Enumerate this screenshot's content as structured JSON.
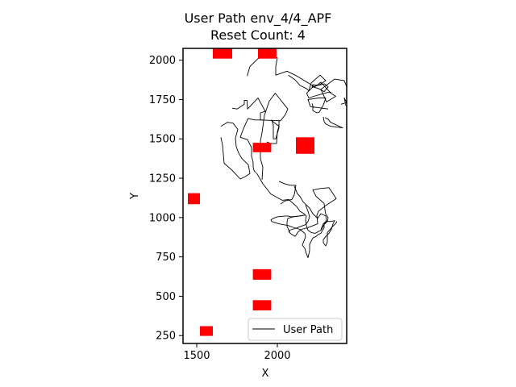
{
  "chart_data": {
    "type": "scatter",
    "title": "User Path env_4/4_APF",
    "subtitle": "Reset Count: 4",
    "xlabel": "X",
    "ylabel": "Y",
    "xlim": [
      1415,
      2430
    ],
    "ylim": [
      200,
      2075
    ],
    "xticks": [
      1500,
      2000
    ],
    "yticks": [
      250,
      500,
      750,
      1000,
      1250,
      1500,
      1750,
      2000
    ],
    "grid": false,
    "legend": {
      "position": "lower-right",
      "entries": [
        "User Path"
      ]
    },
    "colors": {
      "path": "#000000",
      "obstacle": "#ff0000",
      "axes": "#000000"
    },
    "obstacles": [
      {
        "x0": 1600,
        "x1": 1720,
        "y0": 2010,
        "y1": 2075
      },
      {
        "x0": 1880,
        "x1": 1995,
        "y0": 2010,
        "y1": 2075
      },
      {
        "x0": 1848,
        "x1": 1962,
        "y0": 1415,
        "y1": 1475
      },
      {
        "x0": 2115,
        "x1": 2230,
        "y0": 1405,
        "y1": 1510
      },
      {
        "x0": 1445,
        "x1": 1520,
        "y0": 1085,
        "y1": 1155
      },
      {
        "x0": 1848,
        "x1": 1962,
        "y0": 605,
        "y1": 672
      },
      {
        "x0": 1848,
        "x1": 1962,
        "y0": 410,
        "y1": 475
      },
      {
        "x0": 1520,
        "x1": 1600,
        "y0": 248,
        "y1": 310
      }
    ],
    "series": [
      {
        "name": "User Path",
        "segments": [
          [
            [
              1813,
              1900
            ],
            [
              1830,
              1960
            ],
            [
              1880,
              2010
            ],
            [
              1945,
              2030
            ],
            [
              2000,
              2015
            ],
            [
              1990,
              1960
            ],
            [
              1990,
              1905
            ],
            [
              2060,
              1930
            ],
            [
              2120,
              1900
            ],
            [
              2200,
              1850
            ],
            [
              2232,
              1830
            ],
            [
              2270,
              1860
            ],
            [
              2332,
              1790
            ],
            [
              2362,
              1770
            ],
            [
              2305,
              1735
            ],
            [
              2270,
              1815
            ],
            [
              2355,
              1880
            ],
            [
              2415,
              1870
            ],
            [
              2430,
              1830
            ]
          ],
          [
            [
              2068,
              1905
            ],
            [
              2110,
              1875
            ],
            [
              2140,
              1840
            ],
            [
              2180,
              1820
            ],
            [
              2195,
              1805
            ],
            [
              2210,
              1855
            ],
            [
              2265,
              1905
            ],
            [
              2300,
              1870
            ],
            [
              2255,
              1840
            ],
            [
              2220,
              1845
            ],
            [
              2215,
              1830
            ],
            [
              2292,
              1850
            ],
            [
              2315,
              1830
            ],
            [
              2290,
              1800
            ],
            [
              2255,
              1820
            ],
            [
              2220,
              1830
            ],
            [
              2182,
              1790
            ],
            [
              2195,
              1760
            ],
            [
              2225,
              1770
            ],
            [
              2310,
              1795
            ],
            [
              2335,
              1795
            ]
          ],
          [
            [
              2215,
              1725
            ],
            [
              2220,
              1710
            ],
            [
              2220,
              1680
            ],
            [
              2245,
              1665
            ],
            [
              2260,
              1670
            ],
            [
              2285,
              1715
            ],
            [
              2300,
              1760
            ],
            [
              2255,
              1760
            ],
            [
              2190,
              1750
            ],
            [
              2205,
              1705
            ],
            [
              2315,
              1690
            ]
          ],
          [
            [
              2285,
              1640
            ],
            [
              2290,
              1610
            ],
            [
              2300,
              1595
            ],
            [
              2330,
              1580
            ],
            [
              2405,
              1570
            ],
            [
              2330,
              1605
            ],
            [
              2315,
              1625
            ],
            [
              2295,
              1635
            ]
          ],
          [
            [
              2395,
              1720
            ],
            [
              2430,
              1730
            ],
            [
              2415,
              1760
            ],
            [
              2425,
              1710
            ]
          ],
          [
            [
              1720,
              1695
            ],
            [
              1750,
              1690
            ],
            [
              1795,
              1720
            ],
            [
              1795,
              1745
            ],
            [
              1810,
              1745
            ],
            [
              1812,
              1745
            ],
            [
              1815,
              1690
            ],
            [
              1880,
              1760
            ],
            [
              1925,
              1675
            ],
            [
              1895,
              1665
            ],
            [
              1895,
              1660
            ],
            [
              1895,
              1620
            ],
            [
              2020,
              1615
            ],
            [
              2050,
              1655
            ],
            [
              2065,
              1690
            ],
            [
              1987,
              1790
            ],
            [
              1950,
              1740
            ],
            [
              1920,
              1650
            ],
            [
              1905,
              1540
            ],
            [
              1895,
              1485
            ],
            [
              1895,
              1375
            ],
            [
              1910,
              1320
            ],
            [
              1905,
              1240
            ]
          ],
          [
            [
              1915,
              1620
            ],
            [
              1860,
              1620
            ],
            [
              1818,
              1630
            ],
            [
              1790,
              1565
            ],
            [
              1770,
              1510
            ],
            [
              1815,
              1495
            ],
            [
              1840,
              1445
            ],
            [
              1840,
              1390
            ],
            [
              1850,
              1350
            ],
            [
              1850,
              1320
            ],
            [
              1855,
              1300
            ],
            [
              1865,
              1285
            ]
          ],
          [
            [
              1965,
              1620
            ],
            [
              1975,
              1590
            ],
            [
              1975,
              1500
            ],
            [
              1990,
              1500
            ],
            [
              2010,
              1570
            ],
            [
              2010,
              1620
            ]
          ],
          [
            [
              1650,
              1580
            ],
            [
              1690,
              1605
            ],
            [
              1725,
              1600
            ],
            [
              1755,
              1560
            ],
            [
              1740,
              1505
            ],
            [
              1745,
              1450
            ],
            [
              1760,
              1410
            ],
            [
              1780,
              1375
            ],
            [
              1820,
              1335
            ],
            [
              1830,
              1280
            ],
            [
              1800,
              1260
            ],
            [
              1770,
              1245
            ],
            [
              1720,
              1300
            ],
            [
              1670,
              1345
            ],
            [
              1660,
              1460
            ],
            [
              1650,
              1510
            ]
          ],
          [
            [
              1935,
              1480
            ],
            [
              1960,
              1470
            ],
            [
              1995,
              1470
            ],
            [
              2000,
              1545
            ],
            [
              2010,
              1580
            ],
            [
              1960,
              1620
            ]
          ],
          [
            [
              1870,
              1285
            ],
            [
              1910,
              1215
            ],
            [
              1960,
              1150
            ],
            [
              2030,
              1110
            ],
            [
              2070,
              1115
            ],
            [
              2120,
              1070
            ],
            [
              2140,
              1040
            ],
            [
              2165,
              1025
            ],
            [
              2180,
              1010
            ],
            [
              2175,
              985
            ],
            [
              2180,
              950
            ],
            [
              2190,
              920
            ],
            [
              2210,
              905
            ],
            [
              2235,
              900
            ],
            [
              2270,
              920
            ],
            [
              2290,
              955
            ],
            [
              2310,
              975
            ],
            [
              2315,
              1000
            ],
            [
              2300,
              1020
            ],
            [
              2295,
              1050
            ],
            [
              2290,
              1090
            ],
            [
              2240,
              1135
            ],
            [
              2220,
              1175
            ],
            [
              2270,
              1185
            ],
            [
              2320,
              1190
            ],
            [
              2340,
              1160
            ],
            [
              2365,
              1120
            ],
            [
              2305,
              1080
            ],
            [
              2255,
              1040
            ],
            [
              2245,
              1015
            ],
            [
              2250,
              960
            ],
            [
              2200,
              940
            ],
            [
              2150,
              925
            ],
            [
              2130,
              910
            ],
            [
              2110,
              880
            ],
            [
              2080,
              900
            ],
            [
              2060,
              945
            ],
            [
              2060,
              970
            ],
            [
              2065,
              995
            ],
            [
              2100,
              1005
            ],
            [
              2170,
              1015
            ]
          ],
          [
            [
              2010,
              1230
            ],
            [
              2045,
              1215
            ],
            [
              2080,
              1205
            ],
            [
              2115,
              1205
            ],
            [
              2105,
              1145
            ],
            [
              2090,
              1115
            ],
            [
              2045,
              1105
            ],
            [
              2020,
              1085
            ]
          ],
          [
            [
              2105,
              1200
            ],
            [
              2125,
              1150
            ],
            [
              2140,
              1135
            ],
            [
              2160,
              1100
            ],
            [
              2200,
              1060
            ],
            [
              2220,
              1025
            ],
            [
              2250,
              995
            ],
            [
              2270,
              1025
            ],
            [
              2300,
              1010
            ],
            [
              2305,
              980
            ],
            [
              2285,
              960
            ],
            [
              2270,
              925
            ]
          ],
          [
            [
              2165,
              1015
            ],
            [
              2140,
              1010
            ],
            [
              2085,
              1005
            ],
            [
              2065,
              1010
            ],
            [
              2050,
              1010
            ],
            [
              2000,
              1005
            ],
            [
              1975,
              995
            ],
            [
              1960,
              985
            ],
            [
              1965,
              975
            ],
            [
              2010,
              960
            ],
            [
              2035,
              955
            ],
            [
              2065,
              950
            ],
            [
              2105,
              935
            ],
            [
              2140,
              925
            ],
            [
              2170,
              900
            ],
            [
              2175,
              880
            ],
            [
              2170,
              865
            ],
            [
              2155,
              825
            ],
            [
              2170,
              805
            ],
            [
              2180,
              770
            ],
            [
              2190,
              745
            ],
            [
              2200,
              790
            ],
            [
              2200,
              830
            ],
            [
              2220,
              870
            ],
            [
              2240,
              880
            ],
            [
              2250,
              890
            ],
            [
              2270,
              900
            ],
            [
              2280,
              920
            ],
            [
              2290,
              935
            ],
            [
              2290,
              960
            ],
            [
              2305,
              975
            ],
            [
              2330,
              975
            ],
            [
              2355,
              980
            ],
            [
              2345,
              960
            ],
            [
              2335,
              925
            ],
            [
              2320,
              900
            ],
            [
              2300,
              880
            ],
            [
              2285,
              860
            ],
            [
              2285,
              840
            ],
            [
              2300,
              820
            ],
            [
              2310,
              845
            ],
            [
              2310,
              905
            ],
            [
              2340,
              940
            ],
            [
              2360,
              960
            ],
            [
              2370,
              975
            ]
          ],
          [
            [
              2175,
              1080
            ],
            [
              2190,
              1040
            ],
            [
              2200,
              1005
            ],
            [
              2190,
              975
            ],
            [
              2175,
              955
            ],
            [
              2135,
              940
            ],
            [
              2110,
              930
            ],
            [
              2075,
              920
            ],
            [
              2070,
              905
            ]
          ]
        ]
      }
    ]
  }
}
